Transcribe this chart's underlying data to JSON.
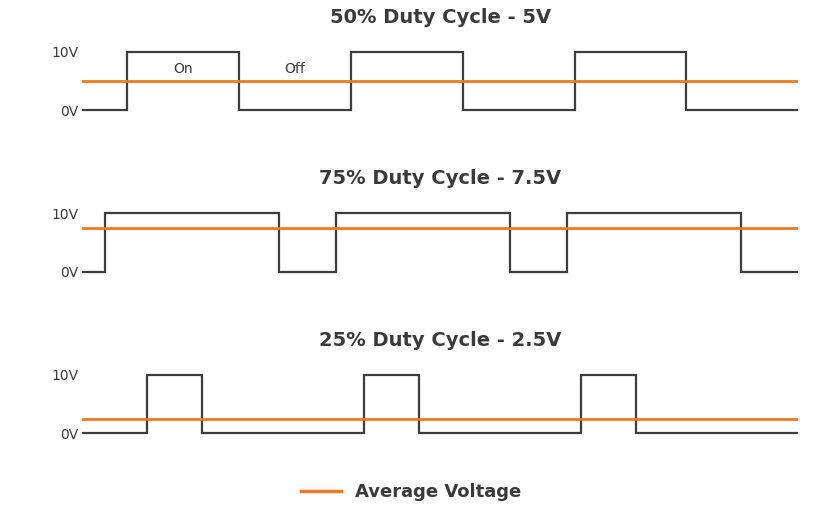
{
  "title1": "50% Duty Cycle - 5V",
  "title2": "75% Duty Cycle - 7.5V",
  "title3": "25% Duty Cycle - 2.5V",
  "legend_label": "Average Voltage",
  "avg_voltage_color": "#F07820",
  "pwm_color": "#3d3d3d",
  "background_color": "#ffffff",
  "title_color": "#3a3a3a",
  "title_fontsize": 14,
  "label_fontsize": 10,
  "on_off_fontsize": 10,
  "duty_cycles": [
    0.5,
    0.75,
    0.25
  ],
  "avg_voltages": [
    5.0,
    7.5,
    2.5
  ],
  "max_voltage": 10.0,
  "num_cycles": 3,
  "on_label": "On",
  "off_label": "Off",
  "fig_width": 8.23,
  "fig_height": 5.21,
  "period": 4.0
}
